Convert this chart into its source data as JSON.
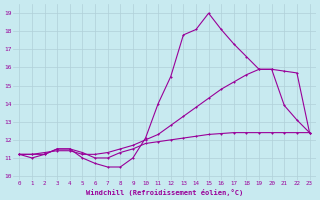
{
  "xlabel": "Windchill (Refroidissement éolien,°C)",
  "background_color": "#c8eaf0",
  "line_color": "#990099",
  "grid_color": "#b0d0d8",
  "xlim": [
    -0.5,
    23.5
  ],
  "ylim": [
    9.8,
    19.5
  ],
  "yticks": [
    10,
    11,
    12,
    13,
    14,
    15,
    16,
    17,
    18,
    19
  ],
  "xticks": [
    0,
    1,
    2,
    3,
    4,
    5,
    6,
    7,
    8,
    9,
    10,
    11,
    12,
    13,
    14,
    15,
    16,
    17,
    18,
    19,
    20,
    21,
    22,
    23
  ],
  "hours": [
    0,
    1,
    2,
    3,
    4,
    5,
    6,
    7,
    8,
    9,
    10,
    11,
    12,
    13,
    14,
    15,
    16,
    17,
    18,
    19,
    20,
    21,
    22,
    23
  ],
  "series1": [
    11.2,
    11.0,
    11.2,
    11.5,
    11.5,
    11.0,
    10.7,
    10.5,
    10.5,
    11.0,
    12.1,
    14.0,
    15.5,
    17.8,
    18.1,
    19.0,
    18.1,
    17.3,
    16.6,
    15.9,
    15.9,
    13.9,
    13.1,
    12.4
  ],
  "series2": [
    11.2,
    11.2,
    11.2,
    11.5,
    11.5,
    11.3,
    11.0,
    11.0,
    11.3,
    11.5,
    11.8,
    11.9,
    12.0,
    12.1,
    12.2,
    12.3,
    12.35,
    12.4,
    12.4,
    12.4,
    12.4,
    12.4,
    12.4,
    12.4
  ],
  "series3": [
    11.2,
    11.2,
    11.3,
    11.4,
    11.4,
    11.2,
    11.2,
    11.3,
    11.5,
    11.7,
    12.0,
    12.3,
    12.8,
    13.3,
    13.8,
    14.3,
    14.8,
    15.2,
    15.6,
    15.9,
    15.9,
    15.8,
    15.7,
    12.4
  ]
}
